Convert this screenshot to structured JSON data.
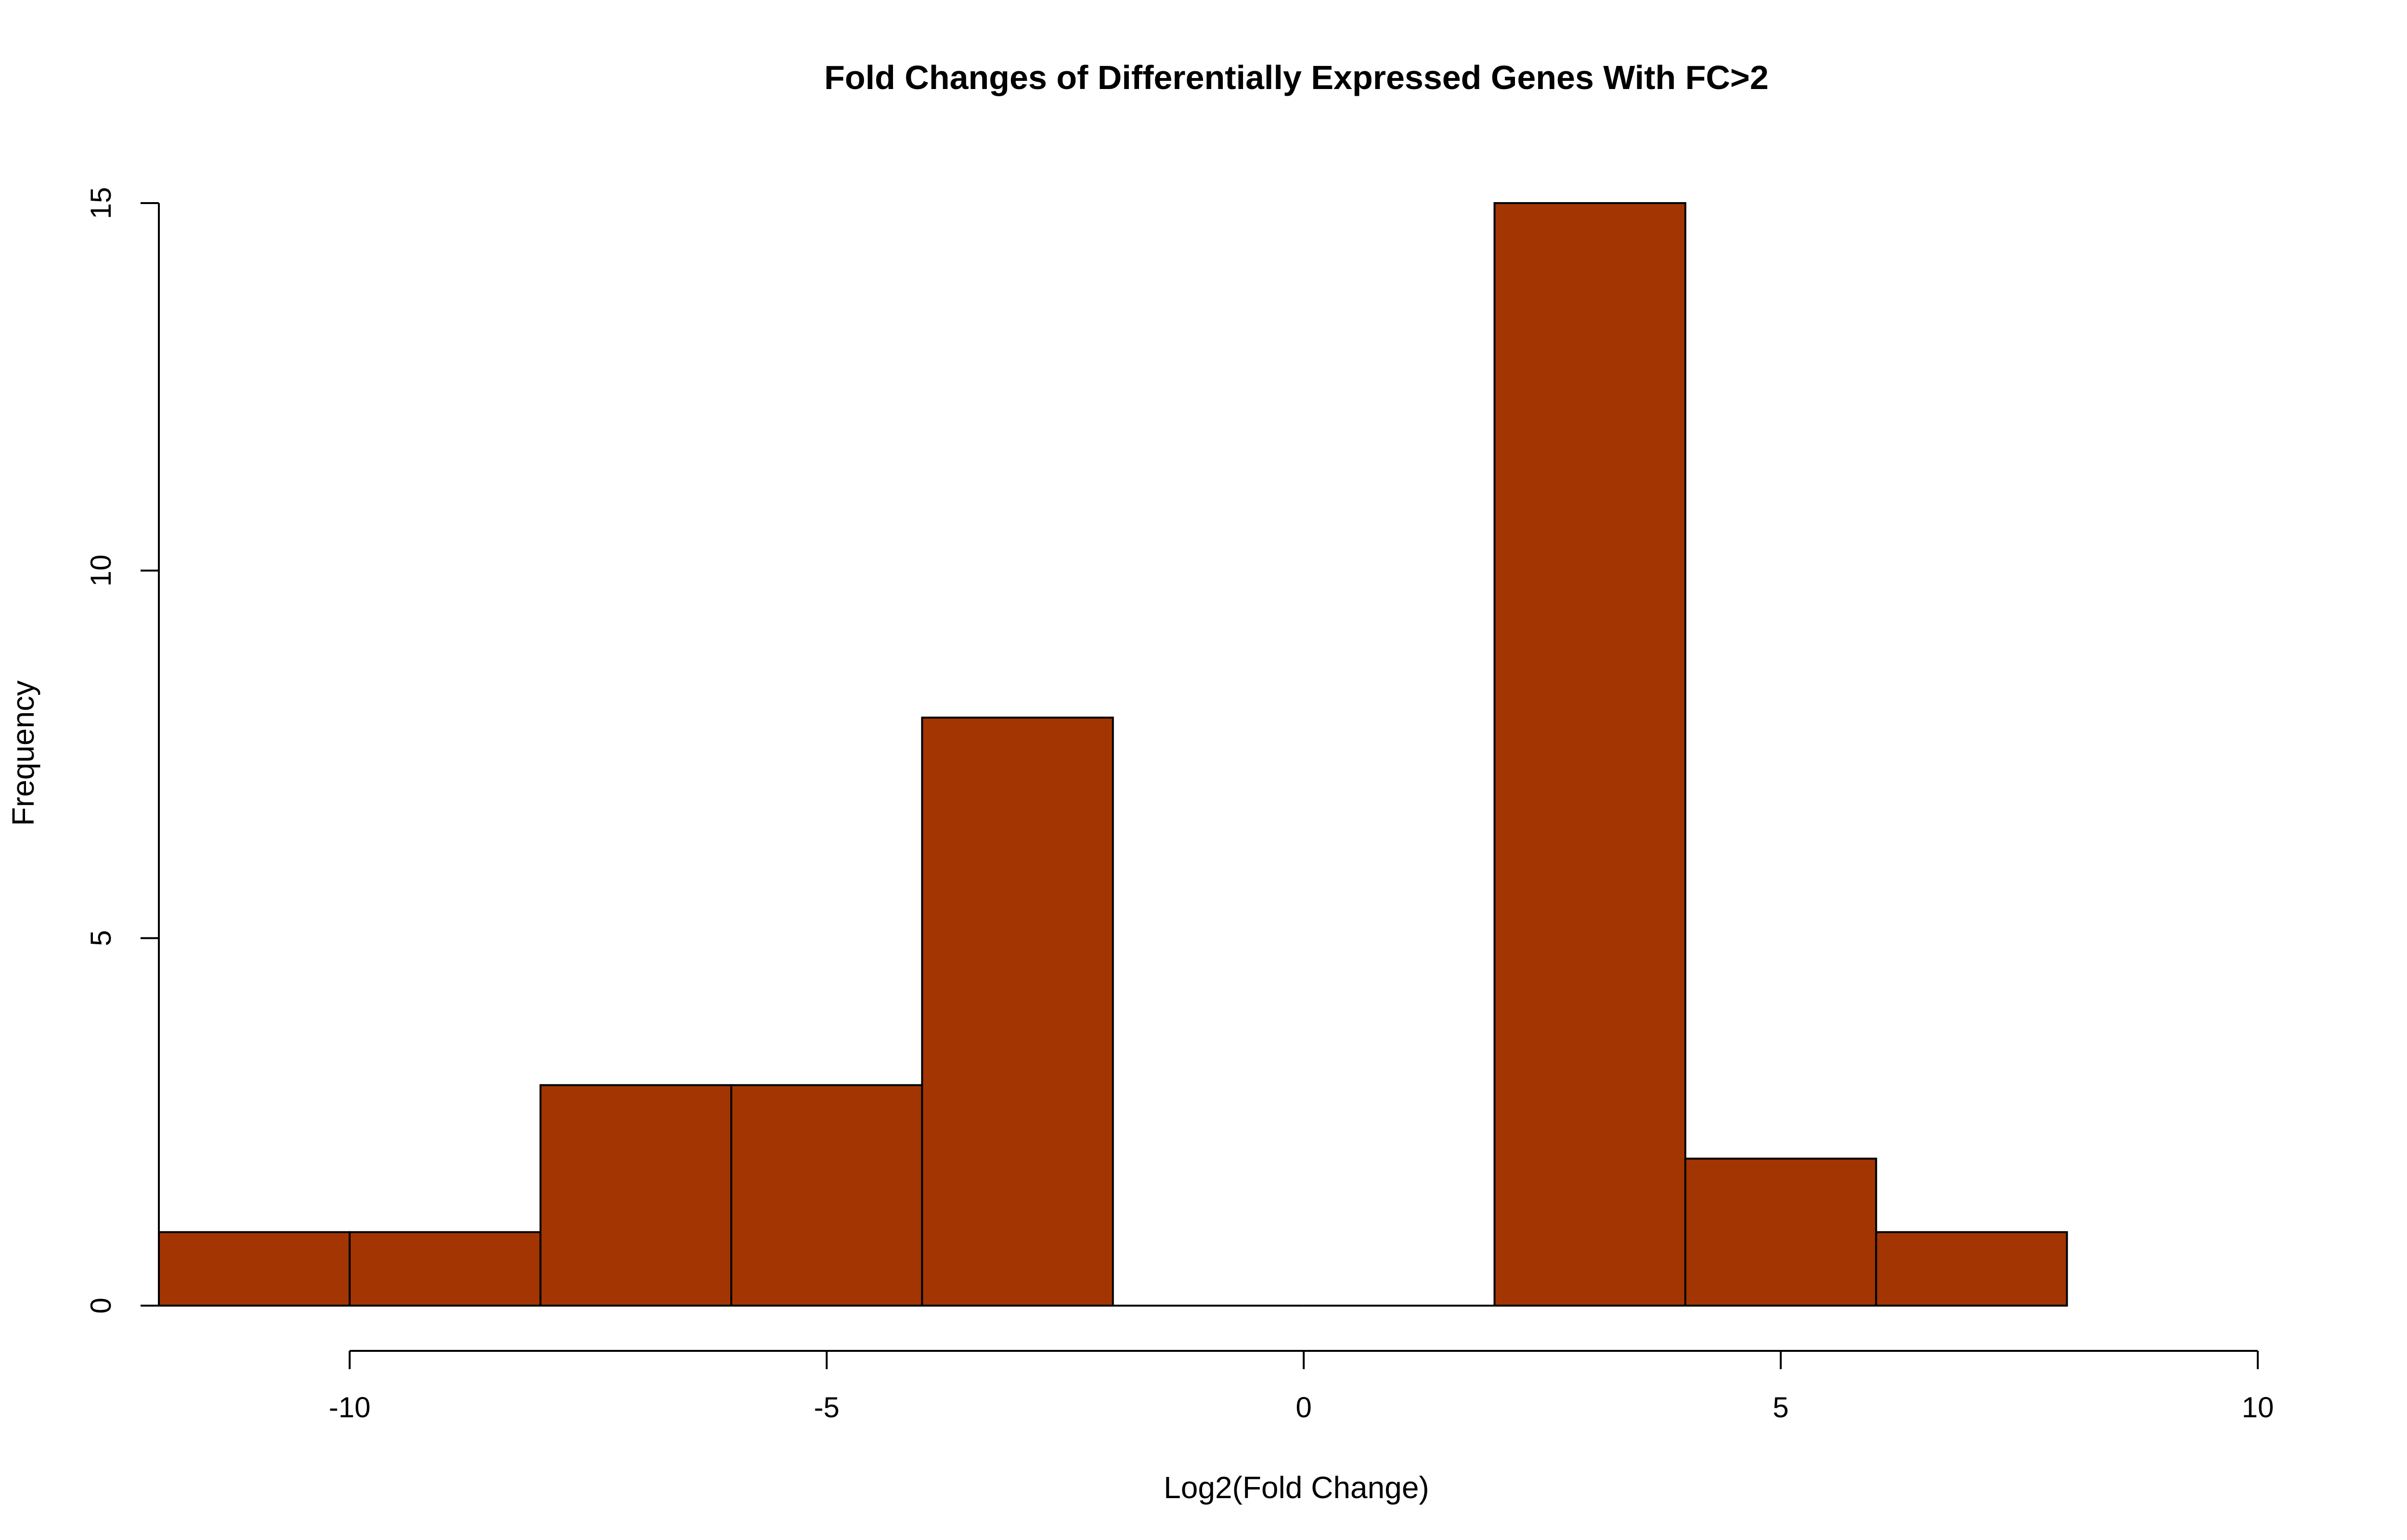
{
  "chart_data": {
    "type": "bar",
    "title": "Fold Changes of Differentially Expressed Genes With FC>2",
    "xlabel": "Log2(Fold Change)",
    "ylabel": "Frequency",
    "bin_edges": [
      -12,
      -10,
      -8,
      -6,
      -4,
      -2,
      0,
      2,
      4,
      6,
      8
    ],
    "values": [
      1,
      1,
      3,
      3,
      8,
      0,
      0,
      15,
      2,
      1
    ],
    "xlim": [
      -12,
      10
    ],
    "ylim": [
      0,
      15
    ],
    "x_ticks": [
      -10,
      -5,
      0,
      5,
      10
    ],
    "x_tick_labels": [
      "-10",
      "-5",
      "0",
      "5",
      "10"
    ],
    "y_ticks": [
      0,
      5,
      10,
      15
    ],
    "y_tick_labels": [
      "0",
      "5",
      "10",
      "15"
    ],
    "bar_color": "#a33502",
    "grid": false,
    "legend": "none"
  }
}
